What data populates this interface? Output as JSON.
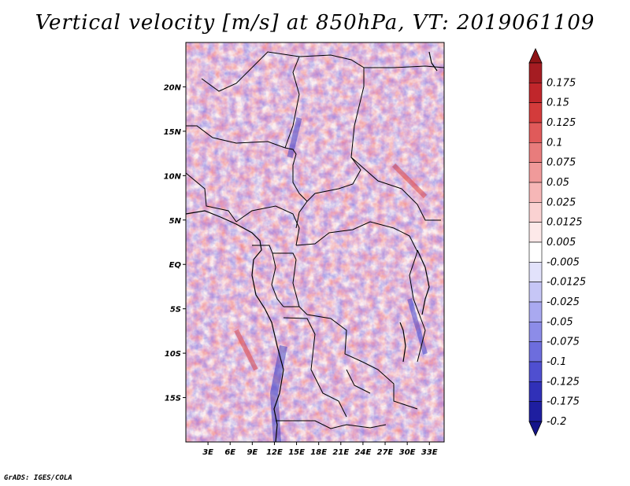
{
  "title": "Vertical velocity [m/s] at 850hPa, VT: 2019061109",
  "footer": "GrADS: IGES/COLA",
  "map": {
    "lon_range": [
      0,
      35
    ],
    "lat_range": [
      -20,
      25
    ],
    "lat_ticks": [
      {
        "value": 20,
        "label": "20N"
      },
      {
        "value": 15,
        "label": "15N"
      },
      {
        "value": 10,
        "label": "10N"
      },
      {
        "value": 5,
        "label": "5N"
      },
      {
        "value": 0,
        "label": "EQ"
      },
      {
        "value": -5,
        "label": "5S"
      },
      {
        "value": -10,
        "label": "10S"
      },
      {
        "value": -15,
        "label": "15S"
      }
    ],
    "lon_ticks": [
      {
        "value": 3,
        "label": "3E"
      },
      {
        "value": 6,
        "label": "6E"
      },
      {
        "value": 9,
        "label": "9E"
      },
      {
        "value": 12,
        "label": "12E"
      },
      {
        "value": 15,
        "label": "15E"
      },
      {
        "value": 18,
        "label": "18E"
      },
      {
        "value": 21,
        "label": "21E"
      },
      {
        "value": 24,
        "label": "24E"
      },
      {
        "value": 27,
        "label": "27E"
      },
      {
        "value": 30,
        "label": "30E"
      },
      {
        "value": 33,
        "label": "33E"
      }
    ]
  },
  "colorbar": {
    "levels": [
      {
        "label": "0.175",
        "color": "#a51c22"
      },
      {
        "label": "0.15",
        "color": "#c0262b"
      },
      {
        "label": "0.125",
        "color": "#d33b3b"
      },
      {
        "label": "0.1",
        "color": "#e05a5a"
      },
      {
        "label": "0.075",
        "color": "#e87c7c"
      },
      {
        "label": "0.05",
        "color": "#f09a9a"
      },
      {
        "label": "0.025",
        "color": "#f6b7b7"
      },
      {
        "label": "0.0125",
        "color": "#fad2d2"
      },
      {
        "label": "0.005",
        "color": "#fde9e9"
      },
      {
        "label": "-0.005",
        "color": "#ffffff"
      },
      {
        "label": "-0.0125",
        "color": "#e2e2fb"
      },
      {
        "label": "-0.025",
        "color": "#c6c6f6"
      },
      {
        "label": "-0.05",
        "color": "#a9a9f0"
      },
      {
        "label": "-0.075",
        "color": "#8c8ce8"
      },
      {
        "label": "-0.1",
        "color": "#6d6ddd"
      },
      {
        "label": "-0.125",
        "color": "#4f4fd0"
      },
      {
        "label": "-0.175",
        "color": "#3030b8"
      },
      {
        "label": "-0.2",
        "color": "#1e1ea0"
      }
    ],
    "top_arrow_color": "#8e1416",
    "bottom_arrow_color": "#14148a"
  }
}
